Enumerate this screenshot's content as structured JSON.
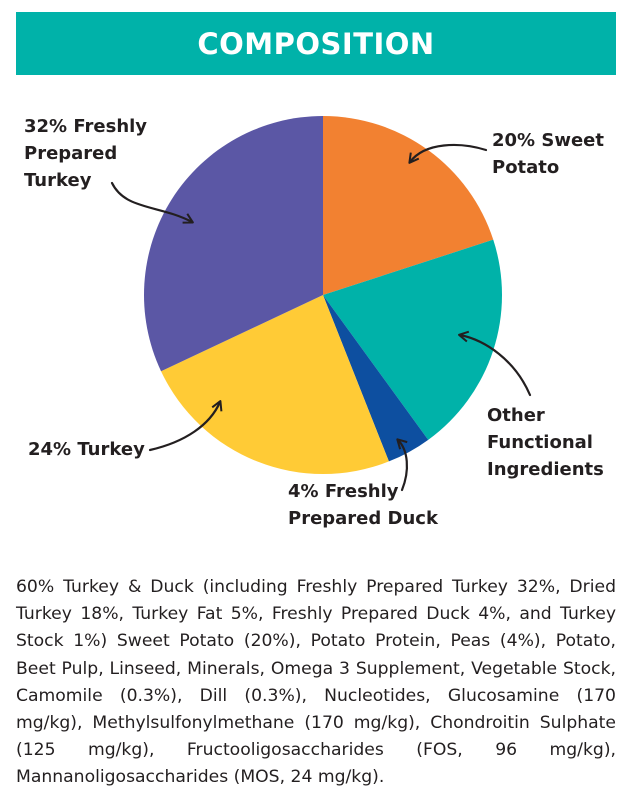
{
  "chart_data": {
    "type": "pie",
    "title": "COMPOSITION",
    "categories": [
      "Sweet Potato",
      "Other Functional Ingredients",
      "Freshly Prepared Duck",
      "Turkey",
      "Freshly Prepared Turkey"
    ],
    "values": [
      20,
      20,
      4,
      24,
      32
    ],
    "value_labels": [
      "20%",
      null,
      "4%",
      "24%",
      "32%"
    ],
    "colors": [
      "#f28131",
      "#00b2a9",
      "#0d4fa0",
      "#ffcb36",
      "#5b57a5"
    ]
  },
  "description": "60% Turkey & Duck (including Freshly Prepared Turkey 32%, Dried Turkey 18%, Turkey Fat 5%, Freshly Prepared Duck 4%, and Turkey Stock 1%) Sweet Potato (20%), Potato Protein, Peas (4%), Potato, Beet Pulp, Linseed, Minerals, Omega 3 Supplement, Vegetable Stock, Camomile (0.3%), Dill (0.3%), Nucleotides, Glucosamine (170 mg/kg), Methylsulfonylmethane (170 mg/kg), Chondroitin Sulphate (125 mg/kg), Fructooligosaccharides (FOS, 96 mg/kg), Mannanoligosaccharides (MOS, 24 mg/kg)."
}
